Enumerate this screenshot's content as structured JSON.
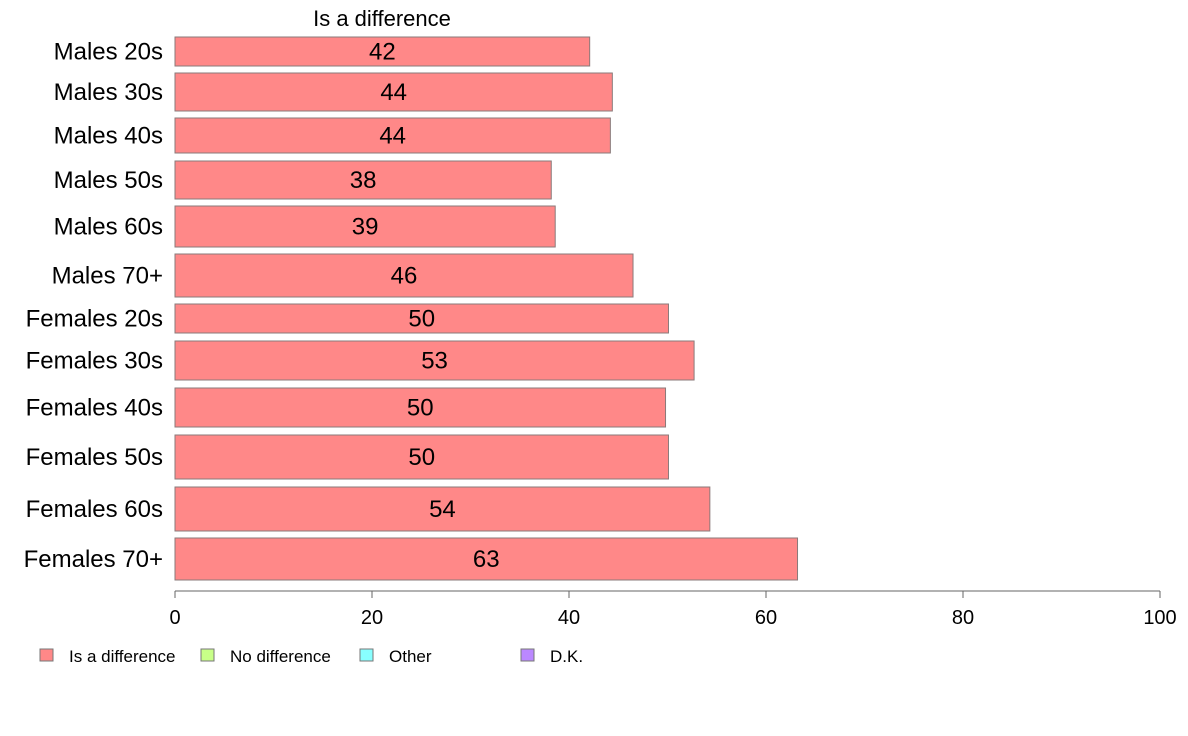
{
  "chart_data": {
    "type": "bar",
    "orientation": "horizontal",
    "series_title": "Is a difference",
    "categories": [
      "Males 20s",
      "Males 30s",
      "Males 40s",
      "Males 50s",
      "Males 60s",
      "Males 70+",
      "Females 20s",
      "Females 30s",
      "Females 40s",
      "Females 50s",
      "Females 60s",
      "Females 70+"
    ],
    "series": [
      {
        "name": "Is a difference",
        "values": [
          42.1,
          44.4,
          44.2,
          38.2,
          38.6,
          46.5,
          50.1,
          52.7,
          49.8,
          50.1,
          54.3,
          63.2
        ],
        "color": "#ff8888"
      }
    ],
    "data_labels": [
      "42",
      "44",
      "44",
      "38",
      "39",
      "46",
      "50",
      "53",
      "50",
      "50",
      "54",
      "63"
    ],
    "xlim": [
      0,
      100
    ],
    "xticks": [
      0,
      20,
      40,
      60,
      80,
      100
    ],
    "grid": false,
    "legend": {
      "placement": "bottom-left",
      "items": [
        {
          "label": "Is a difference",
          "color": "#ff8888"
        },
        {
          "label": "No difference",
          "color": "#c8ff88"
        },
        {
          "label": "Other",
          "color": "#88ffff"
        },
        {
          "label": "D.K.",
          "color": "#bb88ff"
        }
      ]
    }
  }
}
